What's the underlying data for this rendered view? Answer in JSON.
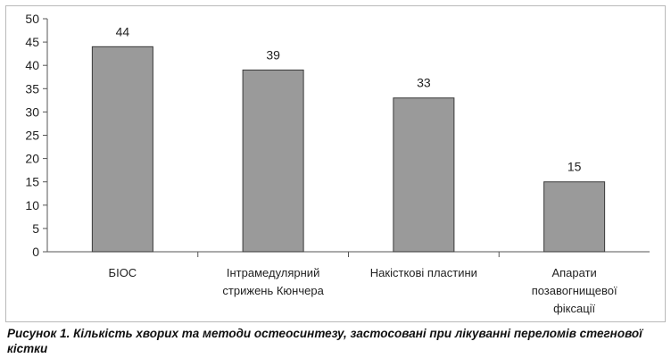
{
  "chart_data": {
    "type": "bar",
    "categories": [
      "БІОС",
      "Інтрамедулярний\nстрижень Кюнчера",
      "Накісткові пластини",
      "Апарати\nпозавогнищевої\nфіксації"
    ],
    "values": [
      44,
      39,
      33,
      15
    ],
    "data_labels": [
      "44",
      "39",
      "33",
      "15"
    ],
    "yticks": [
      "0",
      "5",
      "10",
      "15",
      "20",
      "25",
      "30",
      "35",
      "40",
      "45",
      "50"
    ],
    "ylim": [
      0,
      50
    ],
    "grid": false,
    "legend": "none",
    "bar_color": "#9a9a9a",
    "bar_stroke": "#3a3a3a"
  },
  "caption": "Рисунок 1. Кількість хворих та методи остеосинтезу, застосовані при лікуванні переломів стегнової кістки"
}
